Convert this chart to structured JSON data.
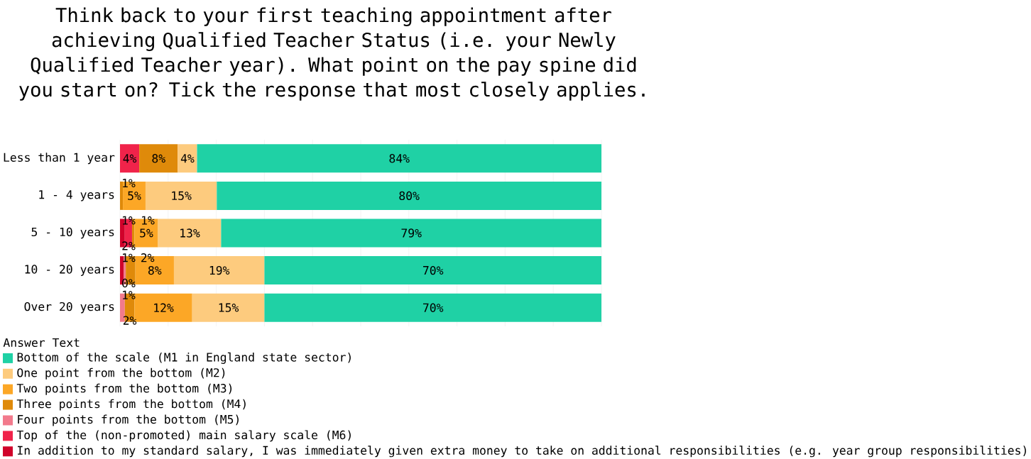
{
  "chart_data": {
    "type": "bar",
    "orientation": "horizontal",
    "stacked": true,
    "title": "Think back to your first teaching appointment after achieving Qualified Teacher Status (i.e. your Newly Qualified Teacher year). What point on the pay spine did you start on? Tick the response that most closely applies.",
    "legend_title": "Answer Text",
    "legend": "bottom",
    "grid": "x",
    "tick_labels": "y",
    "categories": [
      "Less than 1 year",
      "1 - 4 years",
      "5 - 10 years",
      "10 - 20 years",
      "Over 20 years"
    ],
    "xlim": [
      0,
      100
    ],
    "xticks": [
      {
        "value": 0,
        "label": null
      },
      {
        "value": 10,
        "label": null
      },
      {
        "value": 20,
        "label": null
      },
      {
        "value": 30,
        "label": null
      },
      {
        "value": 40,
        "label": null
      },
      {
        "value": 50,
        "label": null
      },
      {
        "value": 60,
        "label": null
      },
      {
        "value": 70,
        "label": null
      },
      {
        "value": 80,
        "label": null
      },
      {
        "value": 90,
        "label": null
      },
      {
        "value": 100,
        "label": null
      }
    ],
    "series": [
      {
        "name": "In addition to my standard salary, I was immediately given extra money to take on additional responsibilities (e.g. year group responsibilities)",
        "color": "#d0022a",
        "values": [
          null,
          null,
          1,
          0.8,
          null
        ],
        "value_labels": [
          null,
          null,
          "1%",
          "1%",
          null
        ]
      },
      {
        "name": "Top of the (non-promoted) main salary scale (M6)",
        "color": "#f0234a",
        "values": [
          4,
          null,
          1.5,
          null,
          null
        ],
        "value_labels": [
          "4%",
          null,
          "2%",
          null,
          null
        ]
      },
      {
        "name": "Four points from the bottom (M5)",
        "color": "#f27a8c",
        "values": [
          null,
          null,
          null,
          0.4,
          1
        ],
        "value_labels": [
          null,
          null,
          null,
          "0%",
          "1%"
        ]
      },
      {
        "name": "Three points from the bottom (M4)",
        "color": "#df8a0a",
        "values": [
          8,
          0.6,
          0.5,
          2,
          2
        ],
        "value_labels": [
          "8%",
          "1%",
          "1%",
          "2%",
          "2%"
        ]
      },
      {
        "name": "Two points from the bottom (M3)",
        "color": "#fca726",
        "values": [
          null,
          4.7,
          4.9,
          8,
          12
        ],
        "value_labels": [
          null,
          "5%",
          "5%",
          "8%",
          "12%"
        ]
      },
      {
        "name": "One point from the bottom (M2)",
        "color": "#fdcb7e",
        "values": [
          4,
          14.8,
          13.1,
          18.8,
          15
        ],
        "value_labels": [
          "4%",
          "15%",
          "13%",
          "19%",
          "15%"
        ]
      },
      {
        "name": "Bottom of the scale (M1 in England state sector)",
        "color": "#1fd1a5",
        "values": [
          84,
          79.9,
          79,
          70,
          70
        ],
        "value_labels": [
          "84%",
          "80%",
          "79%",
          "70%",
          "70%"
        ]
      }
    ]
  }
}
